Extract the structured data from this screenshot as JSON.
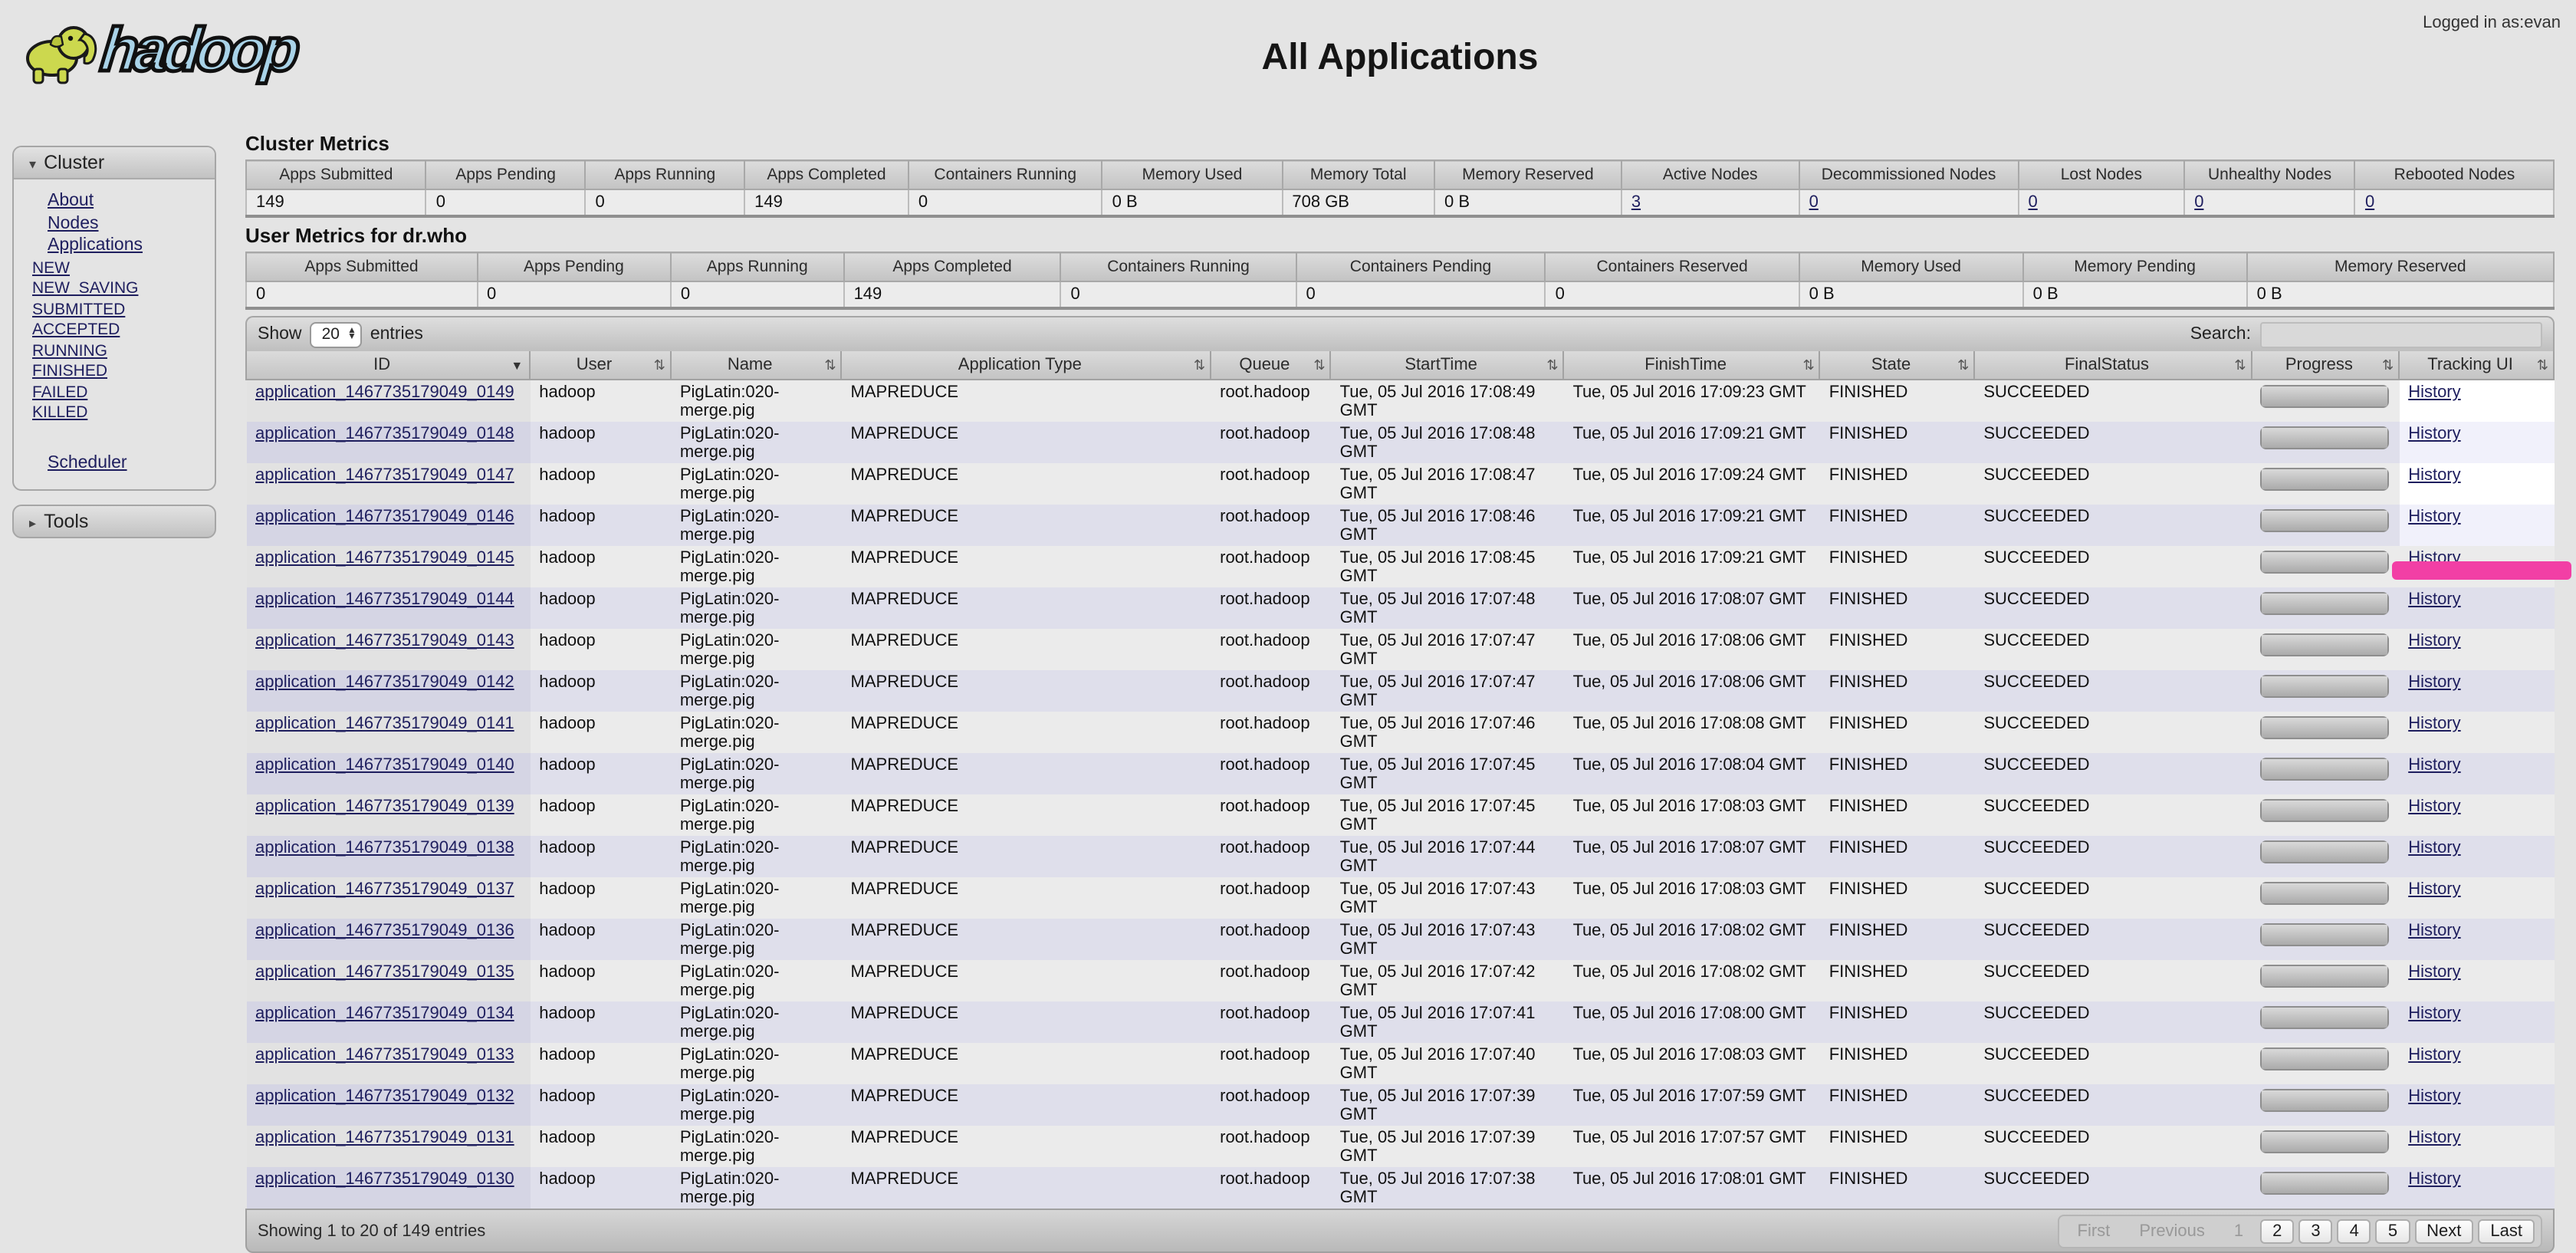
{
  "page": {
    "logo_text": "hadoop",
    "title": "All Applications",
    "logged_in": "Logged in as:evan"
  },
  "sidebar": {
    "cluster_header": "Cluster",
    "items": [
      "About",
      "Nodes",
      "Applications"
    ],
    "sub_items": [
      "NEW",
      "NEW_SAVING",
      "SUBMITTED",
      "ACCEPTED",
      "RUNNING",
      "FINISHED",
      "FAILED",
      "KILLED"
    ],
    "scheduler": "Scheduler",
    "tools_header": "Tools",
    "collapse_icon": "▾",
    "expand_icon": "▸"
  },
  "cluster_metrics": {
    "title": "Cluster Metrics",
    "headers": [
      "Apps Submitted",
      "Apps Pending",
      "Apps Running",
      "Apps Completed",
      "Containers Running",
      "Memory Used",
      "Memory Total",
      "Memory Reserved",
      "Active Nodes",
      "Decommissioned Nodes",
      "Lost Nodes",
      "Unhealthy Nodes",
      "Rebooted Nodes"
    ],
    "values": [
      "149",
      "0",
      "0",
      "149",
      "0",
      "0 B",
      "708 GB",
      "0 B",
      "3",
      "0",
      "0",
      "0",
      "0"
    ],
    "link_start_index": 8
  },
  "user_metrics": {
    "title": "User Metrics for dr.who",
    "headers": [
      "Apps Submitted",
      "Apps Pending",
      "Apps Running",
      "Apps Completed",
      "Containers Running",
      "Containers Pending",
      "Containers Reserved",
      "Memory Used",
      "Memory Pending",
      "Memory Reserved"
    ],
    "values": [
      "0",
      "0",
      "0",
      "149",
      "0",
      "0",
      "0",
      "0 B",
      "0 B",
      "0 B"
    ]
  },
  "toolbar": {
    "show_label": "Show",
    "page_size": "20",
    "entries_label": "entries",
    "search_label": "Search:"
  },
  "table": {
    "sort_icons": {
      "both": "⇅",
      "desc": "▼"
    },
    "headers": [
      {
        "label": "ID",
        "sort": "desc"
      },
      {
        "label": "User",
        "sort": "both"
      },
      {
        "label": "Name",
        "sort": "both"
      },
      {
        "label": "Application Type",
        "sort": "both"
      },
      {
        "label": "Queue",
        "sort": "both"
      },
      {
        "label": "StartTime",
        "sort": "both"
      },
      {
        "label": "FinishTime",
        "sort": "both"
      },
      {
        "label": "State",
        "sort": "both"
      },
      {
        "label": "FinalStatus",
        "sort": "both"
      },
      {
        "label": "Progress",
        "sort": "both"
      },
      {
        "label": "Tracking UI",
        "sort": "both"
      }
    ],
    "rows": [
      {
        "id": "application_1467735179049_0149",
        "user": "hadoop",
        "name": "PigLatin:020-merge.pig",
        "type": "MAPREDUCE",
        "queue": "root.hadoop",
        "start": "Tue, 05 Jul 2016 17:08:49 GMT",
        "finish": "Tue, 05 Jul 2016 17:09:23 GMT",
        "state": "FINISHED",
        "final": "SUCCEEDED",
        "progress": 100,
        "tracking": "History"
      },
      {
        "id": "application_1467735179049_0148",
        "user": "hadoop",
        "name": "PigLatin:020-merge.pig",
        "type": "MAPREDUCE",
        "queue": "root.hadoop",
        "start": "Tue, 05 Jul 2016 17:08:48 GMT",
        "finish": "Tue, 05 Jul 2016 17:09:21 GMT",
        "state": "FINISHED",
        "final": "SUCCEEDED",
        "progress": 100,
        "tracking": "History"
      },
      {
        "id": "application_1467735179049_0147",
        "user": "hadoop",
        "name": "PigLatin:020-merge.pig",
        "type": "MAPREDUCE",
        "queue": "root.hadoop",
        "start": "Tue, 05 Jul 2016 17:08:47 GMT",
        "finish": "Tue, 05 Jul 2016 17:09:24 GMT",
        "state": "FINISHED",
        "final": "SUCCEEDED",
        "progress": 100,
        "tracking": "History"
      },
      {
        "id": "application_1467735179049_0146",
        "user": "hadoop",
        "name": "PigLatin:020-merge.pig",
        "type": "MAPREDUCE",
        "queue": "root.hadoop",
        "start": "Tue, 05 Jul 2016 17:08:46 GMT",
        "finish": "Tue, 05 Jul 2016 17:09:21 GMT",
        "state": "FINISHED",
        "final": "SUCCEEDED",
        "progress": 100,
        "tracking": "History"
      },
      {
        "id": "application_1467735179049_0145",
        "user": "hadoop",
        "name": "PigLatin:020-merge.pig",
        "type": "MAPREDUCE",
        "queue": "root.hadoop",
        "start": "Tue, 05 Jul 2016 17:08:45 GMT",
        "finish": "Tue, 05 Jul 2016 17:09:21 GMT",
        "state": "FINISHED",
        "final": "SUCCEEDED",
        "progress": 100,
        "tracking": "History"
      },
      {
        "id": "application_1467735179049_0144",
        "user": "hadoop",
        "name": "PigLatin:020-merge.pig",
        "type": "MAPREDUCE",
        "queue": "root.hadoop",
        "start": "Tue, 05 Jul 2016 17:07:48 GMT",
        "finish": "Tue, 05 Jul 2016 17:08:07 GMT",
        "state": "FINISHED",
        "final": "SUCCEEDED",
        "progress": 100,
        "tracking": "History"
      },
      {
        "id": "application_1467735179049_0143",
        "user": "hadoop",
        "name": "PigLatin:020-merge.pig",
        "type": "MAPREDUCE",
        "queue": "root.hadoop",
        "start": "Tue, 05 Jul 2016 17:07:47 GMT",
        "finish": "Tue, 05 Jul 2016 17:08:06 GMT",
        "state": "FINISHED",
        "final": "SUCCEEDED",
        "progress": 100,
        "tracking": "History"
      },
      {
        "id": "application_1467735179049_0142",
        "user": "hadoop",
        "name": "PigLatin:020-merge.pig",
        "type": "MAPREDUCE",
        "queue": "root.hadoop",
        "start": "Tue, 05 Jul 2016 17:07:47 GMT",
        "finish": "Tue, 05 Jul 2016 17:08:06 GMT",
        "state": "FINISHED",
        "final": "SUCCEEDED",
        "progress": 100,
        "tracking": "History"
      },
      {
        "id": "application_1467735179049_0141",
        "user": "hadoop",
        "name": "PigLatin:020-merge.pig",
        "type": "MAPREDUCE",
        "queue": "root.hadoop",
        "start": "Tue, 05 Jul 2016 17:07:46 GMT",
        "finish": "Tue, 05 Jul 2016 17:08:08 GMT",
        "state": "FINISHED",
        "final": "SUCCEEDED",
        "progress": 100,
        "tracking": "History"
      },
      {
        "id": "application_1467735179049_0140",
        "user": "hadoop",
        "name": "PigLatin:020-merge.pig",
        "type": "MAPREDUCE",
        "queue": "root.hadoop",
        "start": "Tue, 05 Jul 2016 17:07:45 GMT",
        "finish": "Tue, 05 Jul 2016 17:08:04 GMT",
        "state": "FINISHED",
        "final": "SUCCEEDED",
        "progress": 100,
        "tracking": "History"
      },
      {
        "id": "application_1467735179049_0139",
        "user": "hadoop",
        "name": "PigLatin:020-merge.pig",
        "type": "MAPREDUCE",
        "queue": "root.hadoop",
        "start": "Tue, 05 Jul 2016 17:07:45 GMT",
        "finish": "Tue, 05 Jul 2016 17:08:03 GMT",
        "state": "FINISHED",
        "final": "SUCCEEDED",
        "progress": 100,
        "tracking": "History"
      },
      {
        "id": "application_1467735179049_0138",
        "user": "hadoop",
        "name": "PigLatin:020-merge.pig",
        "type": "MAPREDUCE",
        "queue": "root.hadoop",
        "start": "Tue, 05 Jul 2016 17:07:44 GMT",
        "finish": "Tue, 05 Jul 2016 17:08:07 GMT",
        "state": "FINISHED",
        "final": "SUCCEEDED",
        "progress": 100,
        "tracking": "History"
      },
      {
        "id": "application_1467735179049_0137",
        "user": "hadoop",
        "name": "PigLatin:020-merge.pig",
        "type": "MAPREDUCE",
        "queue": "root.hadoop",
        "start": "Tue, 05 Jul 2016 17:07:43 GMT",
        "finish": "Tue, 05 Jul 2016 17:08:03 GMT",
        "state": "FINISHED",
        "final": "SUCCEEDED",
        "progress": 100,
        "tracking": "History"
      },
      {
        "id": "application_1467735179049_0136",
        "user": "hadoop",
        "name": "PigLatin:020-merge.pig",
        "type": "MAPREDUCE",
        "queue": "root.hadoop",
        "start": "Tue, 05 Jul 2016 17:07:43 GMT",
        "finish": "Tue, 05 Jul 2016 17:08:02 GMT",
        "state": "FINISHED",
        "final": "SUCCEEDED",
        "progress": 100,
        "tracking": "History"
      },
      {
        "id": "application_1467735179049_0135",
        "user": "hadoop",
        "name": "PigLatin:020-merge.pig",
        "type": "MAPREDUCE",
        "queue": "root.hadoop",
        "start": "Tue, 05 Jul 2016 17:07:42 GMT",
        "finish": "Tue, 05 Jul 2016 17:08:02 GMT",
        "state": "FINISHED",
        "final": "SUCCEEDED",
        "progress": 100,
        "tracking": "History"
      },
      {
        "id": "application_1467735179049_0134",
        "user": "hadoop",
        "name": "PigLatin:020-merge.pig",
        "type": "MAPREDUCE",
        "queue": "root.hadoop",
        "start": "Tue, 05 Jul 2016 17:07:41 GMT",
        "finish": "Tue, 05 Jul 2016 17:08:00 GMT",
        "state": "FINISHED",
        "final": "SUCCEEDED",
        "progress": 100,
        "tracking": "History"
      },
      {
        "id": "application_1467735179049_0133",
        "user": "hadoop",
        "name": "PigLatin:020-merge.pig",
        "type": "MAPREDUCE",
        "queue": "root.hadoop",
        "start": "Tue, 05 Jul 2016 17:07:40 GMT",
        "finish": "Tue, 05 Jul 2016 17:08:03 GMT",
        "state": "FINISHED",
        "final": "SUCCEEDED",
        "progress": 100,
        "tracking": "History"
      },
      {
        "id": "application_1467735179049_0132",
        "user": "hadoop",
        "name": "PigLatin:020-merge.pig",
        "type": "MAPREDUCE",
        "queue": "root.hadoop",
        "start": "Tue, 05 Jul 2016 17:07:39 GMT",
        "finish": "Tue, 05 Jul 2016 17:07:59 GMT",
        "state": "FINISHED",
        "final": "SUCCEEDED",
        "progress": 100,
        "tracking": "History"
      },
      {
        "id": "application_1467735179049_0131",
        "user": "hadoop",
        "name": "PigLatin:020-merge.pig",
        "type": "MAPREDUCE",
        "queue": "root.hadoop",
        "start": "Tue, 05 Jul 2016 17:07:39 GMT",
        "finish": "Tue, 05 Jul 2016 17:07:57 GMT",
        "state": "FINISHED",
        "final": "SUCCEEDED",
        "progress": 100,
        "tracking": "History"
      },
      {
        "id": "application_1467735179049_0130",
        "user": "hadoop",
        "name": "PigLatin:020-merge.pig",
        "type": "MAPREDUCE",
        "queue": "root.hadoop",
        "start": "Tue, 05 Jul 2016 17:07:38 GMT",
        "finish": "Tue, 05 Jul 2016 17:08:01 GMT",
        "state": "FINISHED",
        "final": "SUCCEEDED",
        "progress": 100,
        "tracking": "History"
      }
    ],
    "highlight_rows": 4
  },
  "footer": {
    "summary": "Showing 1 to 20 of 149 entries",
    "pagination": [
      {
        "label": "First",
        "enabled": false
      },
      {
        "label": "Previous",
        "enabled": false
      },
      {
        "label": "1",
        "enabled": false
      },
      {
        "label": "2",
        "enabled": true
      },
      {
        "label": "3",
        "enabled": true
      },
      {
        "label": "4",
        "enabled": true
      },
      {
        "label": "5",
        "enabled": true
      },
      {
        "label": "Next",
        "enabled": true
      },
      {
        "label": "Last",
        "enabled": true
      }
    ]
  },
  "colors": {
    "highlight_box": "#f23fa5",
    "link": "#1e1e5e",
    "row_even": "#dfdfeb",
    "row_odd": "#ebebeb"
  }
}
